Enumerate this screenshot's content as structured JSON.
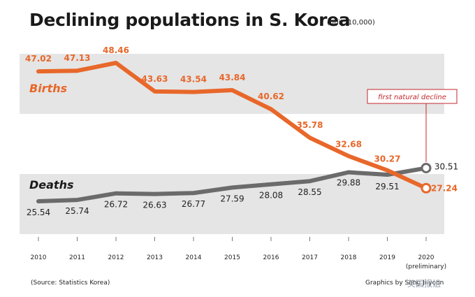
{
  "page": {
    "title": "Declining populations in S. Korea",
    "unit_note": "(unit: 10,000)",
    "source": "(Source: Statistics Korea)",
    "credit": "Graphics by Song Ji-yoon",
    "watermark": "英国报姐"
  },
  "colors": {
    "births": "#e8672a",
    "deaths": "#6b6b6b",
    "band": "#e5e5e5",
    "annotation": "#c2272d"
  },
  "chart_data": {
    "type": "line",
    "x": [
      "2010",
      "2011",
      "2012",
      "2013",
      "2014",
      "2015",
      "2016",
      "2017",
      "2018",
      "2019",
      "2020"
    ],
    "x_sublabel": {
      "2020": "(preliminary)"
    },
    "series": [
      {
        "name": "Births",
        "values": [
          47.02,
          47.13,
          48.46,
          43.63,
          43.54,
          43.84,
          40.62,
          35.78,
          32.68,
          30.27,
          27.24
        ]
      },
      {
        "name": "Deaths",
        "values": [
          25.54,
          25.74,
          26.72,
          26.63,
          26.77,
          27.59,
          28.08,
          28.55,
          29.88,
          29.51,
          30.51
        ]
      }
    ],
    "annotation": {
      "text": "first natural decline",
      "x": "2020"
    },
    "grid": false,
    "legend": "inline labels"
  }
}
